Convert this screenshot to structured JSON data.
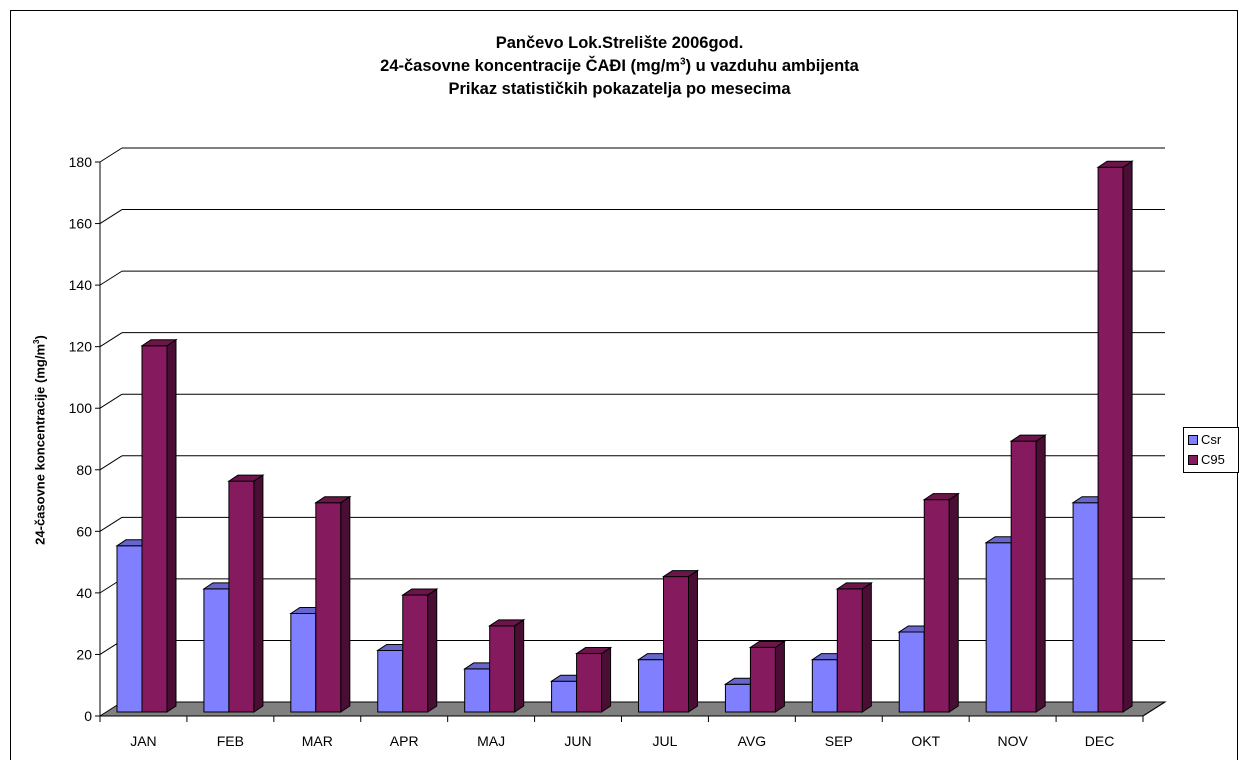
{
  "title": {
    "line1": "Pančevo  Lok.Strelište  2006god.",
    "line2_pre": "24-časovne koncentracije ČAĐI (",
    "line2_unit": "m",
    "line2_mid": "g/m",
    "line2_sup": "3",
    "line2_post": ") u vazduhu ambijenta",
    "line3": "Prikaz statističkih pokazatelja po mesecima"
  },
  "ylabel": {
    "pre": "24-časovne koncentracije (",
    "unit": "m",
    "mid": "g/m",
    "sup": "3",
    "post": ")"
  },
  "chart_data": {
    "type": "bar",
    "categories": [
      "JAN",
      "FEB",
      "MAR",
      "APR",
      "MAJ",
      "JUN",
      "JUL",
      "AVG",
      "SEP",
      "OKT",
      "NOV",
      "DEC"
    ],
    "series": [
      {
        "name": "Csr",
        "color": "#8080ff",
        "values": [
          54,
          40,
          32,
          20,
          14,
          10,
          17,
          9,
          17,
          26,
          55,
          68
        ]
      },
      {
        "name": "C95",
        "color": "#861a5e",
        "values": [
          119,
          75,
          68,
          38,
          28,
          19,
          44,
          21,
          40,
          69,
          88,
          177
        ]
      }
    ],
    "ylim": [
      0,
      180
    ],
    "yticks": [
      "0",
      "20",
      "40",
      "60",
      "80",
      "100",
      "120",
      "140",
      "160",
      "180"
    ],
    "grid": true,
    "legend_position": "right"
  }
}
